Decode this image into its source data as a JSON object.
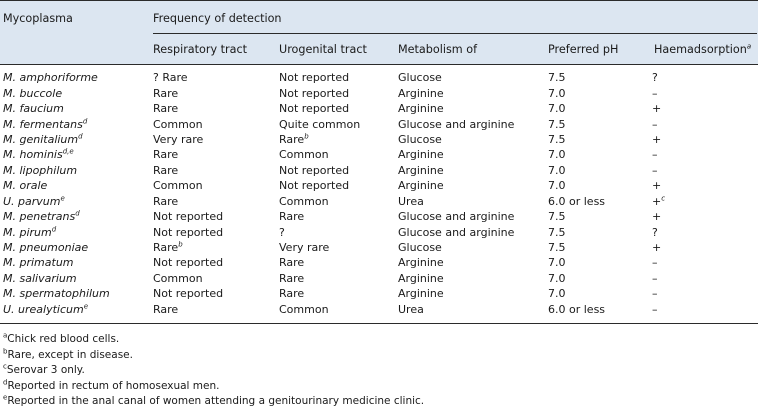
{
  "header": {
    "col_mycoplasma": "Mycoplasma",
    "group_frequency": "Frequency of detection",
    "col_respiratory": "Respiratory tract",
    "col_urogenital": "Urogenital tract",
    "col_metabolism": "Metabolism of",
    "col_ph": "Preferred pH",
    "col_haemadsorption": "Haemadsorption",
    "col_haemadsorption_sup": "a"
  },
  "rows": [
    {
      "name": "M. amphoriforme",
      "name_sup": "",
      "resp": "? Rare",
      "resp_sup": "",
      "uro": "Not reported",
      "uro_sup": "",
      "metab": "Glucose",
      "ph": "7.5",
      "haem": "?",
      "haem_sup": ""
    },
    {
      "name": "M. buccole",
      "name_sup": "",
      "resp": "Rare",
      "resp_sup": "",
      "uro": "Not reported",
      "uro_sup": "",
      "metab": "Arginine",
      "ph": "7.0",
      "haem": "–",
      "haem_sup": ""
    },
    {
      "name": "M. faucium",
      "name_sup": "",
      "resp": "Rare",
      "resp_sup": "",
      "uro": "Not reported",
      "uro_sup": "",
      "metab": "Arginine",
      "ph": "7.0",
      "haem": "+",
      "haem_sup": ""
    },
    {
      "name": "M. fermentans",
      "name_sup": "d",
      "resp": "Common",
      "resp_sup": "",
      "uro": "Quite common",
      "uro_sup": "",
      "metab": "Glucose and arginine",
      "ph": "7.5",
      "haem": "–",
      "haem_sup": ""
    },
    {
      "name": "M. genitalium",
      "name_sup": "d",
      "resp": "Very rare",
      "resp_sup": "",
      "uro": "Rare",
      "uro_sup": "b",
      "metab": "Glucose",
      "ph": "7.5",
      "haem": "+",
      "haem_sup": ""
    },
    {
      "name": "M. hominis",
      "name_sup": "d,e",
      "resp": "Rare",
      "resp_sup": "",
      "uro": "Common",
      "uro_sup": "",
      "metab": "Arginine",
      "ph": "7.0",
      "haem": "–",
      "haem_sup": ""
    },
    {
      "name": "M. lipophilum",
      "name_sup": "",
      "resp": "Rare",
      "resp_sup": "",
      "uro": "Not reported",
      "uro_sup": "",
      "metab": "Arginine",
      "ph": "7.0",
      "haem": "–",
      "haem_sup": ""
    },
    {
      "name": "M. orale",
      "name_sup": "",
      "resp": "Common",
      "resp_sup": "",
      "uro": "Not reported",
      "uro_sup": "",
      "metab": "Arginine",
      "ph": "7.0",
      "haem": "+",
      "haem_sup": ""
    },
    {
      "name": "U. parvum",
      "name_sup": "e",
      "resp": "Rare",
      "resp_sup": "",
      "uro": "Common",
      "uro_sup": "",
      "metab": "Urea",
      "ph": "6.0 or less",
      "haem": "+",
      "haem_sup": "c"
    },
    {
      "name": "M. penetrans",
      "name_sup": "d",
      "resp": "Not reported",
      "resp_sup": "",
      "uro": "Rare",
      "uro_sup": "",
      "metab": "Glucose and arginine",
      "ph": "7.5",
      "haem": "+",
      "haem_sup": ""
    },
    {
      "name": "M. pirum",
      "name_sup": "d",
      "resp": "Not reported",
      "resp_sup": "",
      "uro": "?",
      "uro_sup": "",
      "metab": "Glucose and arginine",
      "ph": "7.5",
      "haem": "?",
      "haem_sup": ""
    },
    {
      "name": "M. pneumoniae",
      "name_sup": "",
      "resp": "Rare",
      "resp_sup": "b",
      "uro": "Very rare",
      "uro_sup": "",
      "metab": "Glucose",
      "ph": "7.5",
      "haem": "+",
      "haem_sup": ""
    },
    {
      "name": "M. primatum",
      "name_sup": "",
      "resp": "Not reported",
      "resp_sup": "",
      "uro": "Rare",
      "uro_sup": "",
      "metab": "Arginine",
      "ph": "7.0",
      "haem": "–",
      "haem_sup": ""
    },
    {
      "name": "M. salivarium",
      "name_sup": "",
      "resp": "Common",
      "resp_sup": "",
      "uro": "Rare",
      "uro_sup": "",
      "metab": "Arginine",
      "ph": "7.0",
      "haem": "–",
      "haem_sup": ""
    },
    {
      "name": "M. spermatophilum",
      "name_sup": "",
      "resp": "Not reported",
      "resp_sup": "",
      "uro": "Rare",
      "uro_sup": "",
      "metab": "Arginine",
      "ph": "7.0",
      "haem": "–",
      "haem_sup": ""
    },
    {
      "name": "U. urealyticum",
      "name_sup": "e",
      "resp": "Rare",
      "resp_sup": "",
      "uro": "Common",
      "uro_sup": "",
      "metab": "Urea",
      "ph": "6.0 or less",
      "haem": "–",
      "haem_sup": ""
    }
  ],
  "footnotes": [
    {
      "mark": "a",
      "text": "Chick red blood cells."
    },
    {
      "mark": "b",
      "text": "Rare, except in disease."
    },
    {
      "mark": "c",
      "text": "Serovar 3 only."
    },
    {
      "mark": "d",
      "text": "Reported in rectum of homosexual men."
    },
    {
      "mark": "e",
      "text": "Reported in the anal canal of women attending a genitourinary medicine clinic."
    }
  ],
  "colors": {
    "header_bg": "#dce6f1",
    "rule": "#2b2b2b",
    "text": "#1a1a1a"
  }
}
